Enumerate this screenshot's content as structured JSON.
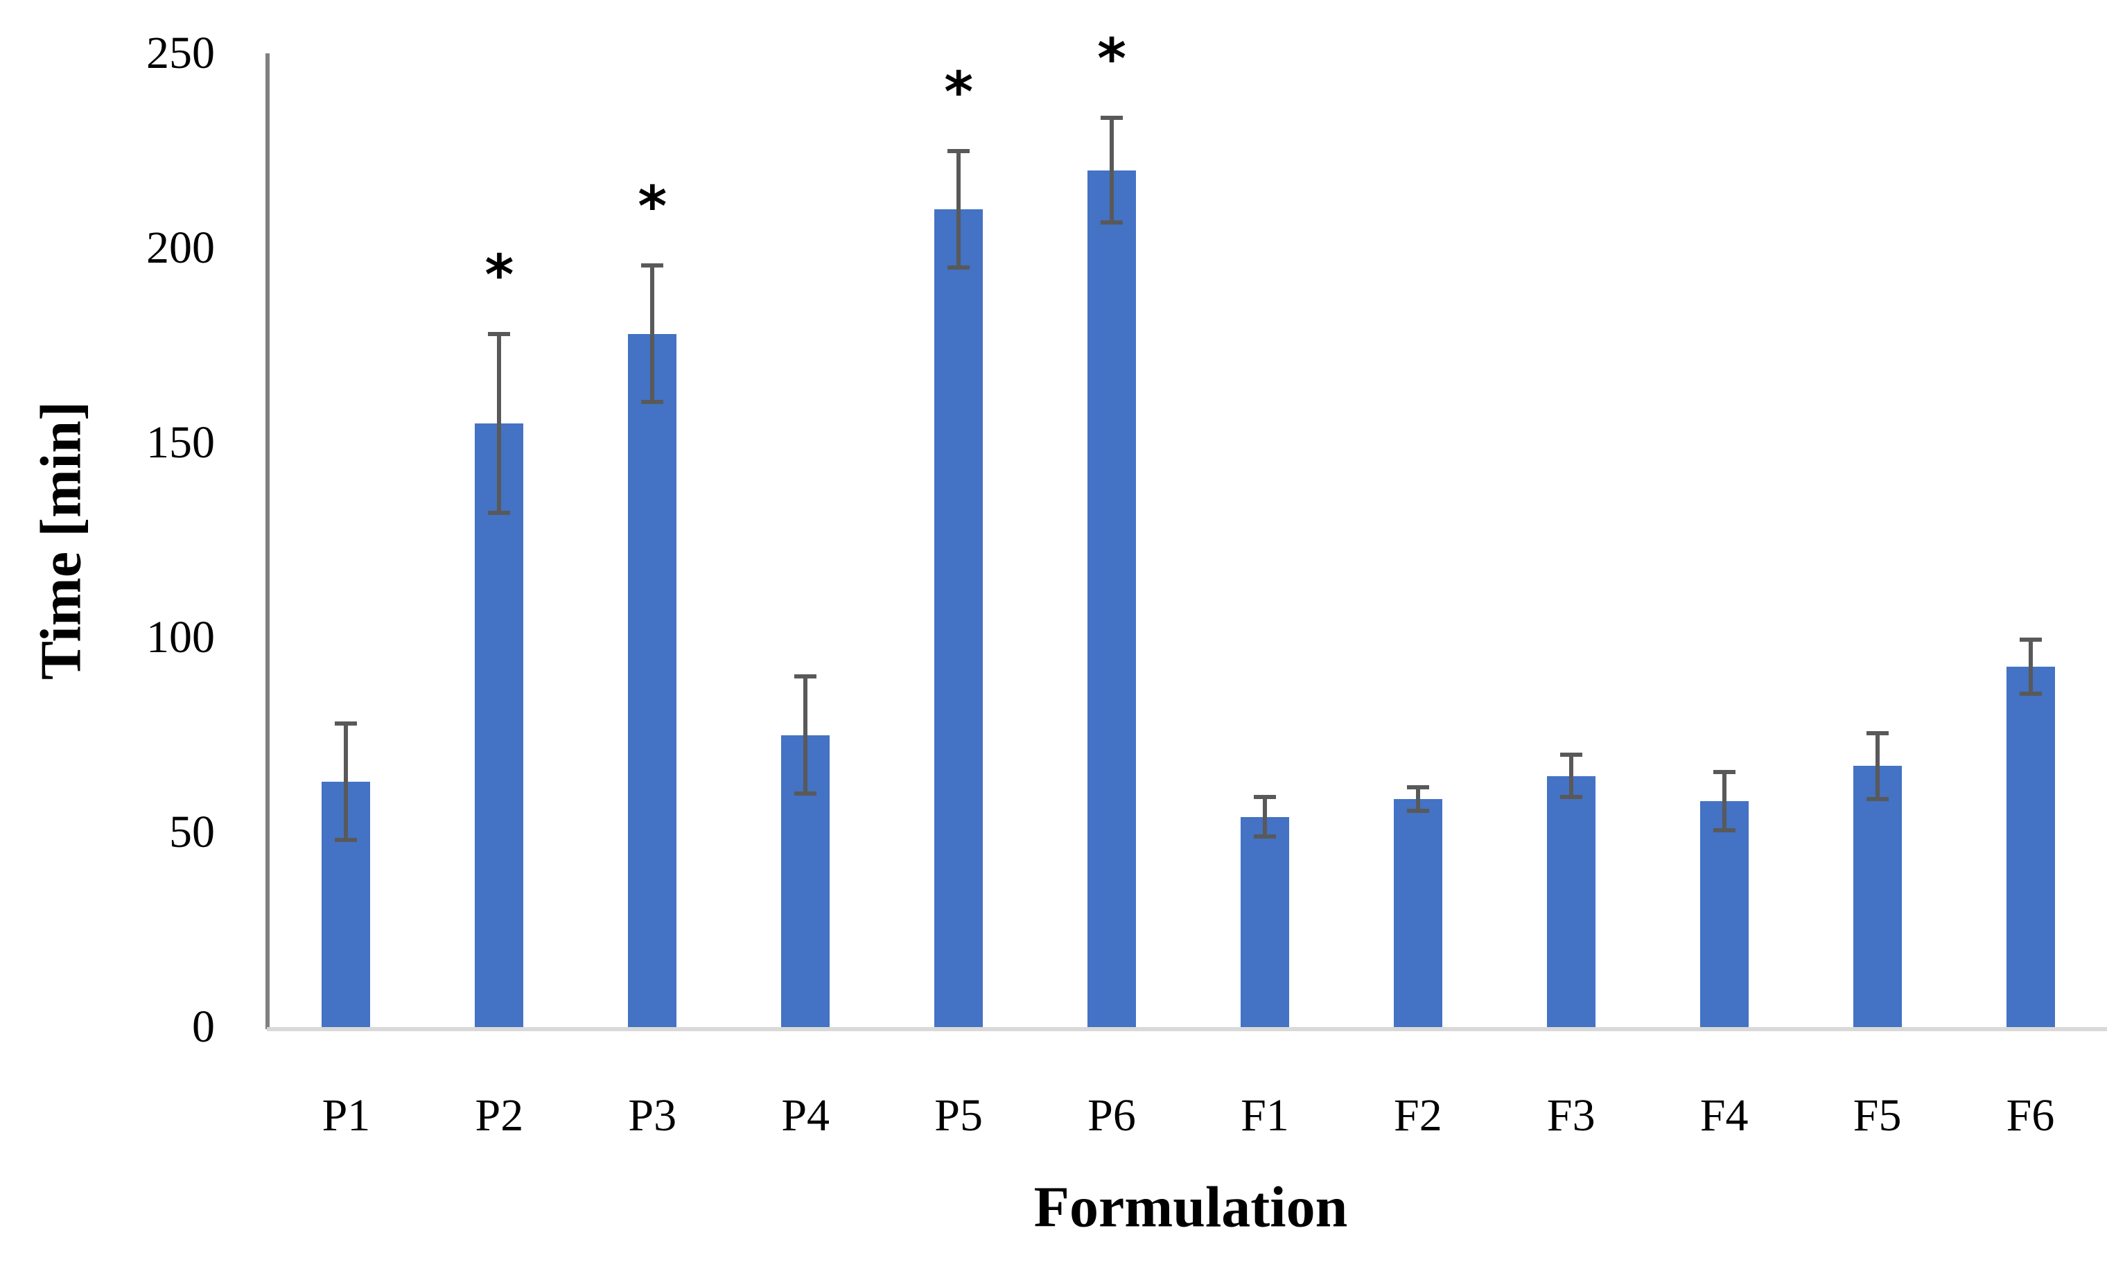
{
  "chart_data": {
    "type": "bar",
    "title": "",
    "xlabel": "Formulation",
    "ylabel": "Time [min]",
    "ylim": [
      0,
      250
    ],
    "yticks": [
      0,
      50,
      100,
      150,
      200,
      250
    ],
    "grid": false,
    "legend": null,
    "categories": [
      "P1",
      "P2",
      "P3",
      "P4",
      "P5",
      "P6",
      "F1",
      "F2",
      "F3",
      "F4",
      "F5",
      "F6"
    ],
    "values": [
      63,
      155,
      178,
      75,
      210,
      220,
      54,
      58.5,
      64.5,
      58,
      67,
      92.5
    ],
    "error": [
      15,
      23,
      17.5,
      15,
      15,
      13.5,
      5,
      3,
      5.5,
      7.5,
      8.5,
      7
    ],
    "significance": [
      "",
      "*",
      "*",
      "",
      "*",
      "*",
      "",
      "",
      "",
      "",
      "",
      ""
    ],
    "bar_color": "#4472c4",
    "error_bar_color": "#595959"
  },
  "axes": {
    "x_title": "Formulation",
    "y_title": "Time [min]"
  }
}
